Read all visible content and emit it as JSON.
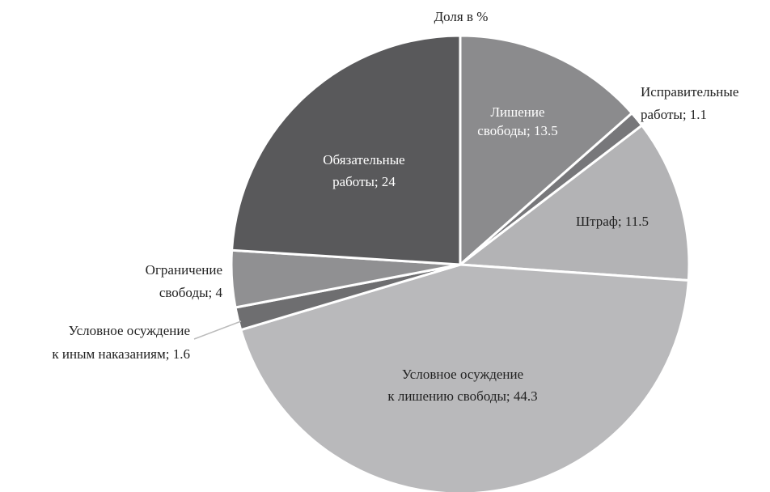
{
  "chart_data": {
    "type": "pie",
    "title": "Доля в %",
    "labels": [
      [
        "Лишение",
        "свободы; 13.5"
      ],
      [
        "Исправительные",
        "работы; 1.1"
      ],
      [
        "Штраф; 11.5"
      ],
      [
        "Условное осуждение",
        "к лишению свободы; 44.3"
      ],
      [
        "Условное осуждение",
        "к иным наказаниям; 1.6"
      ],
      [
        "Ограничение",
        "свободы; 4"
      ],
      [
        "Обязательные",
        "работы; 24"
      ]
    ],
    "values": [
      13.5,
      1.1,
      11.5,
      44.3,
      1.6,
      4,
      24
    ],
    "colors": [
      "#8b8b8d",
      "#77777a",
      "#b3b3b5",
      "#b9b9bb",
      "#6e6e70",
      "#909092",
      "#59595b"
    ]
  }
}
